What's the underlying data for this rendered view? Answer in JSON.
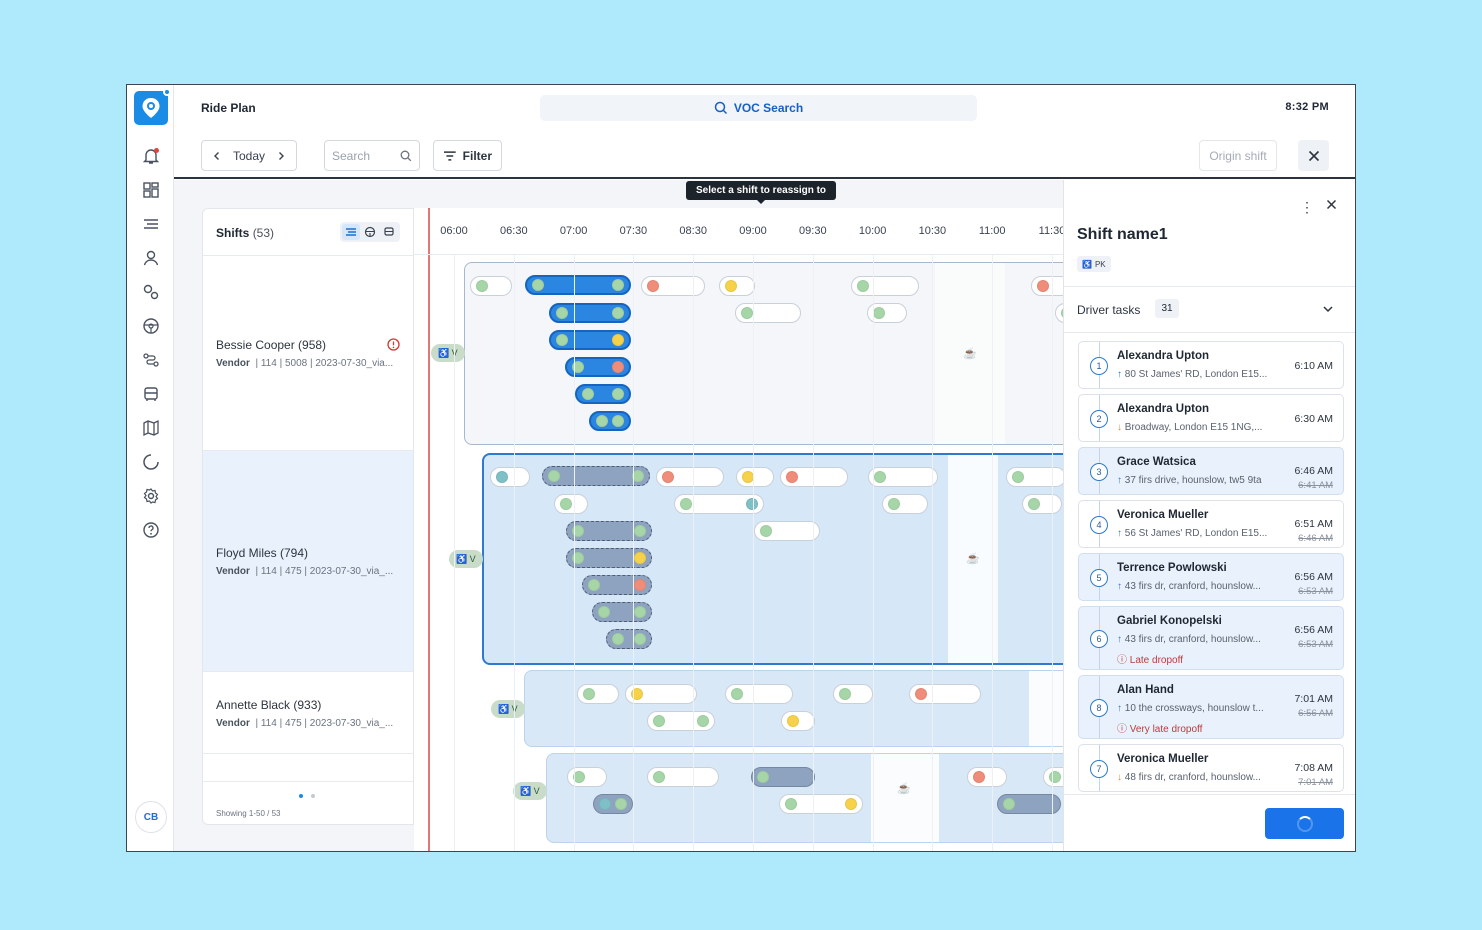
{
  "app": {
    "title": "Ride Plan",
    "search_label": "VOC Search",
    "clock": "8:32 PM",
    "user_initials": "CB"
  },
  "toolbar": {
    "today": "Today",
    "search_placeholder": "Search",
    "filter": "Filter",
    "origin_shift": "Origin shift"
  },
  "tooltip": "Select a shift to reassign to",
  "shifts": {
    "title": "Shifts",
    "count": "(53)",
    "showing": "Showing 1-50 / 53",
    "rows": [
      {
        "name": "Bessie Cooper (958)",
        "vendor": "Vendor",
        "a": "114",
        "b": "5008",
        "c": "2023-07-30_via...",
        "alert": true
      },
      {
        "name": "Floyd Miles (794)",
        "vendor": "Vendor",
        "a": "114",
        "b": "475",
        "c": "2023-07-30_via_...",
        "alert": false
      },
      {
        "name": "Annette Black (933)",
        "vendor": "Vendor",
        "a": "114",
        "b": "475",
        "c": "2023-07-30_via_...",
        "alert": false
      }
    ]
  },
  "timeline": {
    "ticks": [
      "06:00",
      "06:30",
      "07:00",
      "07:30",
      "08:30",
      "09:00",
      "09:30",
      "10:00",
      "10:30",
      "11:00",
      "11:30"
    ],
    "tag_label": "V"
  },
  "drawer": {
    "title": "Shift name1",
    "badge": "PK",
    "tasks_label": "Driver tasks",
    "tasks_count": "31",
    "tasks": [
      {
        "num": "1",
        "name": "Alexandra Upton",
        "addr": "80 St James' RD, London E15...",
        "dir": "up",
        "time": "6:10 AM",
        "old": "",
        "warn": "",
        "hl": false
      },
      {
        "num": "2",
        "name": "Alexandra Upton",
        "addr": "Broadway, London E15 1NG,...",
        "dir": "down",
        "time": "6:30 AM",
        "old": "",
        "warn": "",
        "hl": false
      },
      {
        "num": "3",
        "name": "Grace Watsica",
        "addr": "37 firs drive, hounslow, tw5 9ta",
        "dir": "up",
        "time": "6:46 AM",
        "old": "6:41 AM",
        "warn": "",
        "hl": true
      },
      {
        "num": "4",
        "name": "Veronica Mueller",
        "addr": "56 St James' RD, London E15...",
        "dir": "up",
        "time": "6:51 AM",
        "old": "6:46 AM",
        "warn": "",
        "hl": false
      },
      {
        "num": "5",
        "name": "Terrence Powlowski",
        "addr": "43 firs dr, cranford, hounslow...",
        "dir": "up",
        "time": "6:56 AM",
        "old": "6:53 AM",
        "warn": "",
        "hl": true
      },
      {
        "num": "6",
        "name": "Gabriel Konopelski",
        "addr": "43 firs dr, cranford, hounslow...",
        "dir": "up",
        "time": "6:56 AM",
        "old": "6:53 AM",
        "warn": "Late dropoff",
        "hl": true
      },
      {
        "num": "8",
        "name": "Alan Hand",
        "addr": "10 the crossways, hounslow t...",
        "dir": "up",
        "time": "7:01 AM",
        "old": "6:56 AM",
        "warn": "Very late dropoff",
        "hl": true
      },
      {
        "num": "7",
        "name": "Veronica Mueller",
        "addr": "48 firs dr, cranford, hounslow...",
        "dir": "down",
        "time": "7:08 AM",
        "old": "7:01 AM",
        "warn": "",
        "hl": false
      }
    ]
  },
  "colors": {
    "accent": "#1a8ce6",
    "green": "#a6d6a8",
    "yellow": "#f5d24a",
    "red": "#ef8d7a",
    "teal": "#7fbfc6"
  }
}
